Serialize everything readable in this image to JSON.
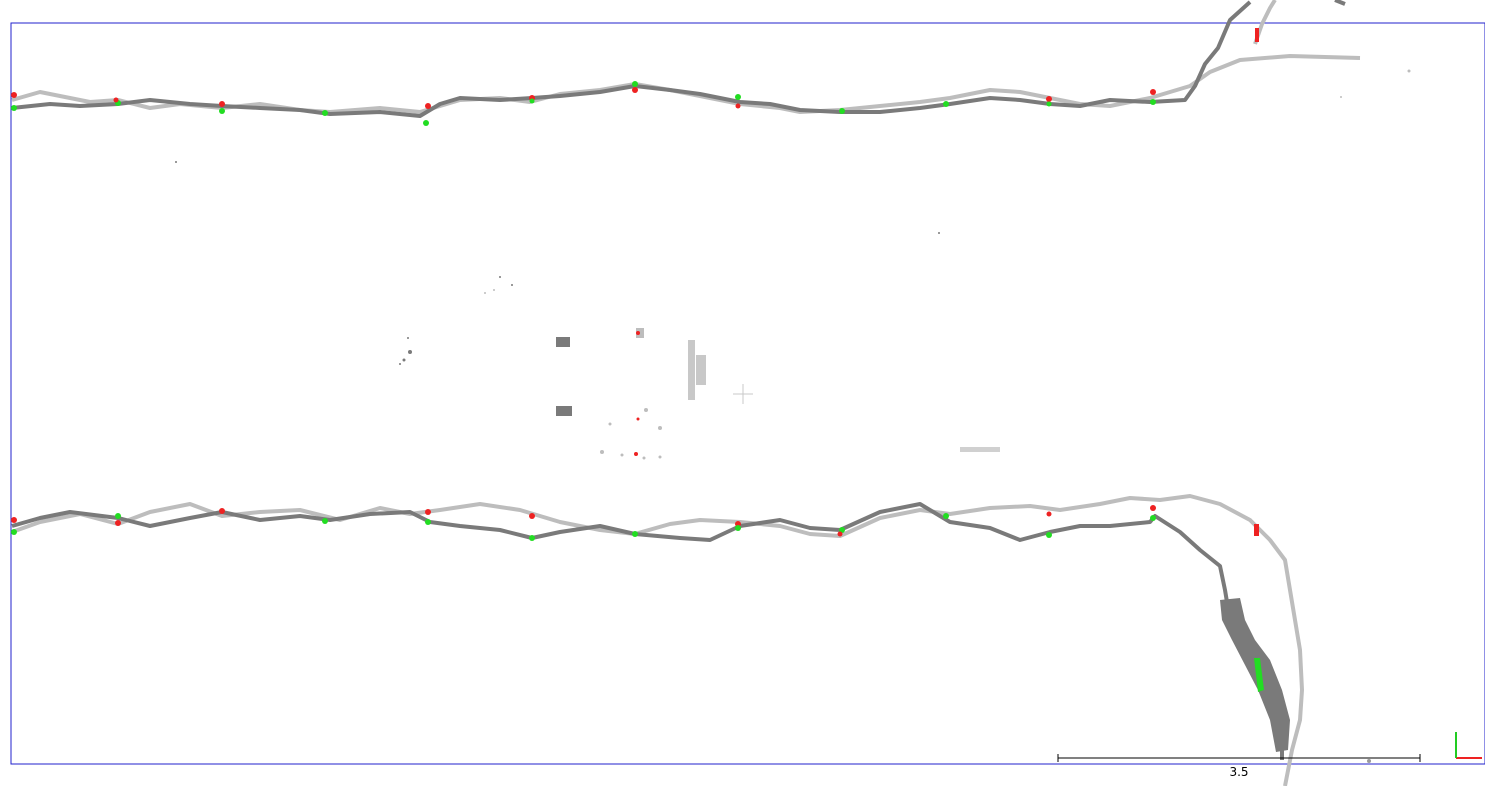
{
  "viewer": {
    "scale_bar": {
      "label": "3.5"
    }
  },
  "colors": {
    "frame": "#2222cc",
    "trace_dark": "#7a7a7a",
    "trace_light": "#bdbdbd",
    "marker_green": "#22dd22",
    "marker_red": "#ee2222",
    "axis_x": "#ee2222",
    "axis_y": "#22cc22",
    "crosshair": "#c8c8c8"
  },
  "icons": {
    "center": "crosshair-icon",
    "axes": "axes-gizmo-icon"
  }
}
